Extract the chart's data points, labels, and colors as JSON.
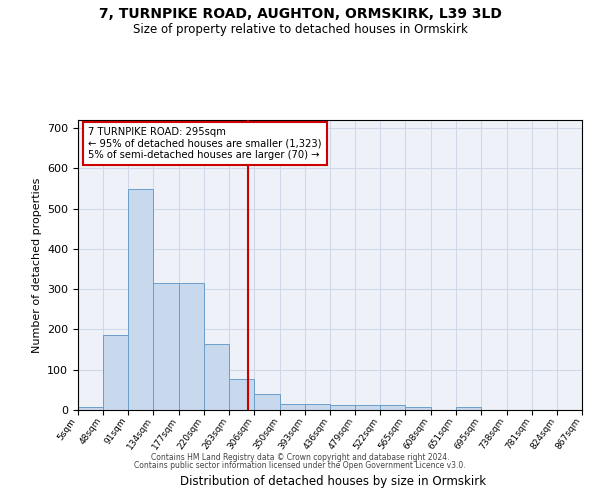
{
  "title1": "7, TURNPIKE ROAD, AUGHTON, ORMSKIRK, L39 3LD",
  "title2": "Size of property relative to detached houses in Ormskirk",
  "xlabel": "Distribution of detached houses by size in Ormskirk",
  "ylabel": "Number of detached properties",
  "bin_edges": [
    5,
    48,
    91,
    134,
    177,
    220,
    263,
    306,
    350,
    393,
    436,
    479,
    522,
    565,
    608,
    651,
    695,
    738,
    781,
    824,
    867
  ],
  "bar_heights": [
    8,
    185,
    548,
    315,
    315,
    165,
    77,
    40,
    15,
    15,
    13,
    12,
    12,
    8,
    0,
    7,
    0,
    0,
    0,
    0
  ],
  "bar_color": "#c9d9ed",
  "bar_edge_color": "#6b9eca",
  "grid_color": "#d0d8e8",
  "bg_color": "#eef2f8",
  "property_size": 295,
  "red_line_color": "#cc0000",
  "annotation_line1": "7 TURNPIKE ROAD: 295sqm",
  "annotation_line2": "← 95% of detached houses are smaller (1,323)",
  "annotation_line3": "5% of semi-detached houses are larger (70) →",
  "annotation_box_color": "#ffffff",
  "annotation_box_edge": "#cc0000",
  "footnote1": "Contains HM Land Registry data © Crown copyright and database right 2024.",
  "footnote2": "Contains public sector information licensed under the Open Government Licence v3.0.",
  "ylim": [
    0,
    720
  ],
  "yticks": [
    0,
    100,
    200,
    300,
    400,
    500,
    600,
    700
  ]
}
